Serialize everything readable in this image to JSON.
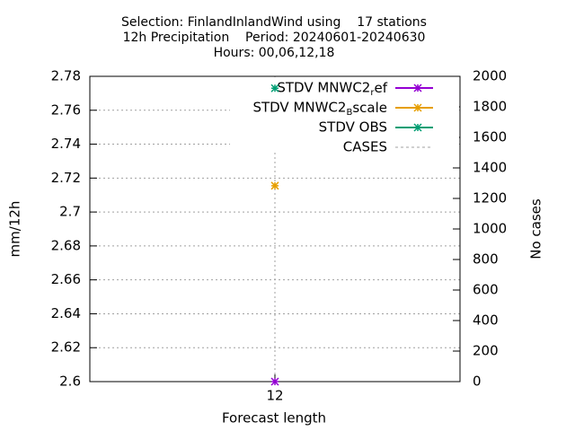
{
  "chart_data": {
    "type": "line",
    "title": [
      "Selection: FinlandInlandWind using    17 stations",
      "12h Precipitation    Period: 20240601-20240630",
      "Hours: 00,06,12,18"
    ],
    "xlabel": "Forecast length",
    "ylabel": "mm/12h",
    "y2label": "No cases",
    "categories": [
      "12"
    ],
    "series": [
      {
        "name": "STDV MNWC2_ref",
        "color": "#9400d3",
        "values": [
          2.6
        ]
      },
      {
        "name": "STDV MNWC2_Bscale",
        "color": "#e69f00",
        "values": [
          2.7155
        ]
      },
      {
        "name": "STDV OBS",
        "color": "#009e73",
        "values": [
          2.773
        ]
      },
      {
        "name": "CASES",
        "color": "#a0a0a0",
        "axis": "y2",
        "dashed": true,
        "values": [
          null
        ]
      }
    ],
    "ylim": [
      2.6,
      2.78
    ],
    "yticks": [
      2.6,
      2.62,
      2.64,
      2.66,
      2.68,
      2.7,
      2.72,
      2.74,
      2.76,
      2.78
    ],
    "y2lim": [
      0,
      2000
    ],
    "y2ticks": [
      0,
      200,
      400,
      600,
      800,
      1000,
      1200,
      1400,
      1600,
      1800,
      2000
    ],
    "grid": true,
    "legend": "top-right"
  }
}
